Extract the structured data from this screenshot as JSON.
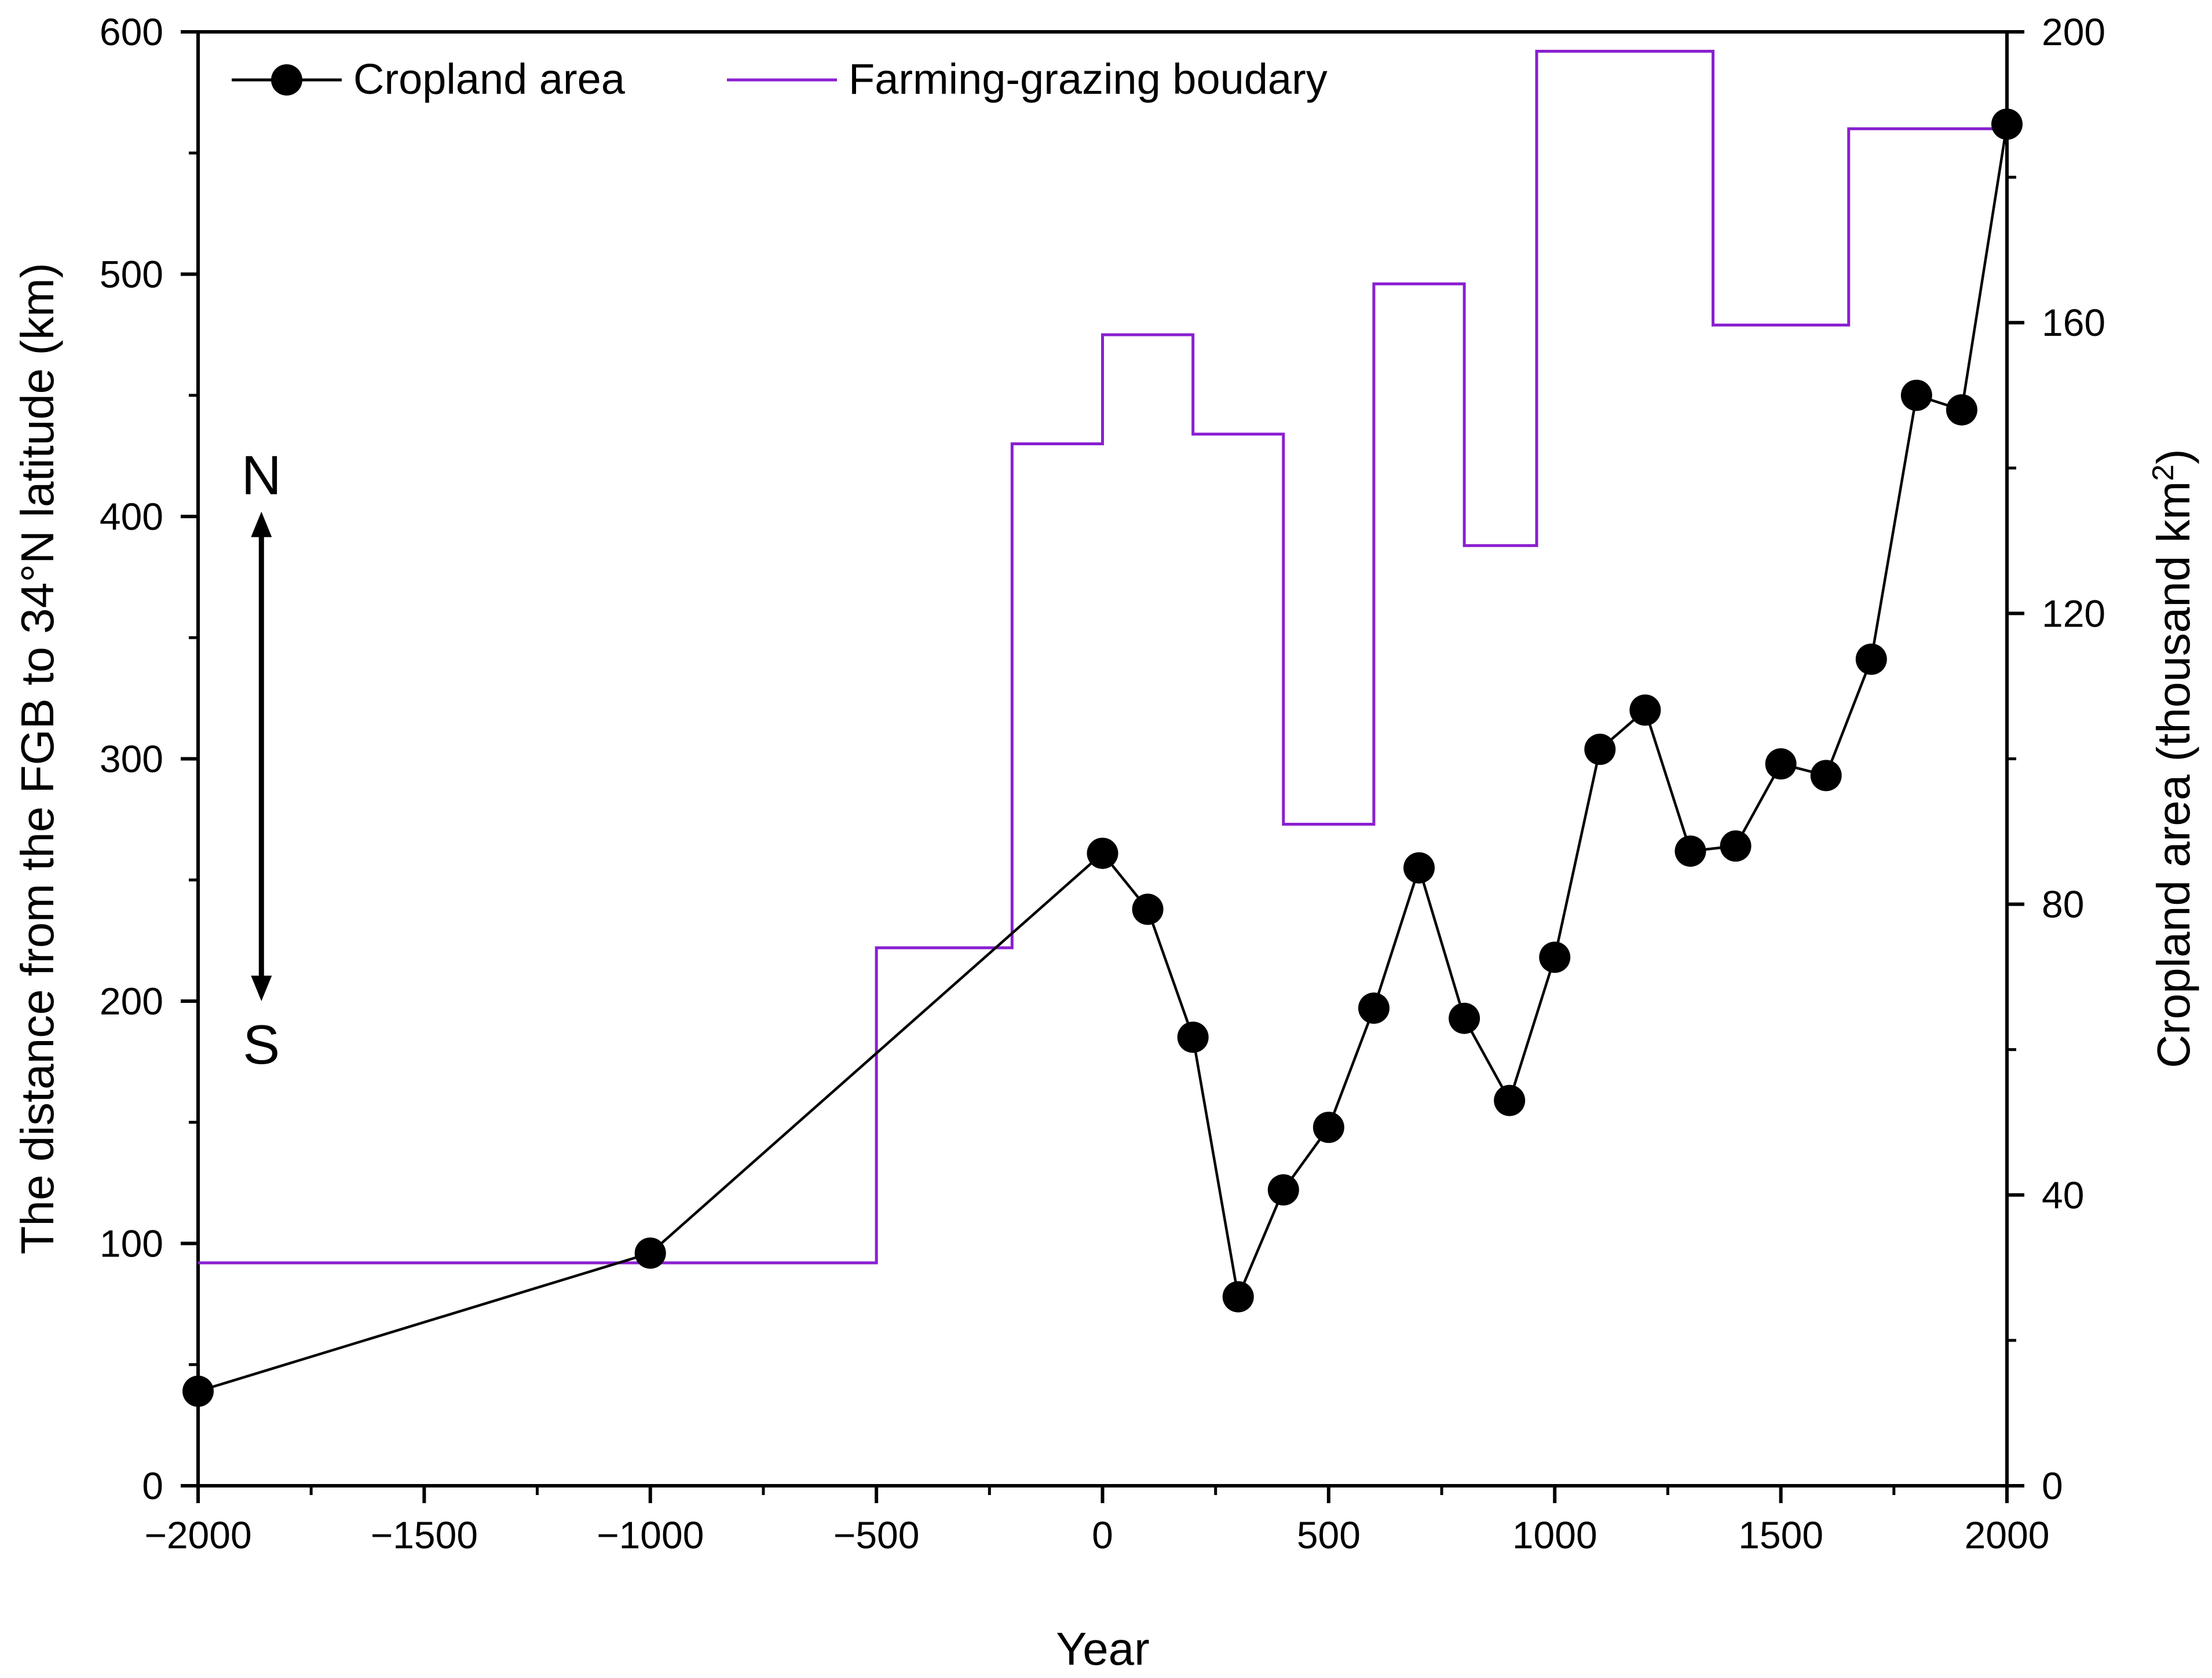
{
  "chart_data": {
    "type": "line",
    "xlabel": "Year",
    "ylabel_left": "The distance from the FGB to 34°N latitude (km)",
    "ylabel_right_prefix": "Cropland area (thousand km",
    "ylabel_right_sup": "2",
    "ylabel_right_suffix": ")",
    "xlim": [
      -2000,
      2000
    ],
    "ylim_left": [
      0,
      600
    ],
    "ylim_right": [
      0,
      200
    ],
    "xticks": [
      -2000,
      -1500,
      -1000,
      -500,
      0,
      500,
      1000,
      1500,
      2000
    ],
    "xtick_labels": [
      "−2000",
      "−1500",
      "−1000",
      "−500",
      "0",
      "500",
      "1000",
      "1500",
      "2000"
    ],
    "yticks_left": [
      0,
      100,
      200,
      300,
      400,
      500,
      600
    ],
    "yticks_left_labels": [
      "0",
      "100",
      "200",
      "300",
      "400",
      "500",
      "600"
    ],
    "yticks_right": [
      0,
      40,
      80,
      120,
      160,
      200
    ],
    "yticks_right_labels": [
      "0",
      "40",
      "80",
      "120",
      "160",
      "200"
    ],
    "legend_position": "top",
    "series": [
      {
        "name": "Cropland area",
        "axis": "right",
        "style": "line-with-circle-markers",
        "color": "#000000",
        "x": [
          -2000,
          -1000,
          0,
          100,
          200,
          300,
          400,
          500,
          600,
          700,
          800,
          900,
          1000,
          1100,
          1200,
          1300,
          1400,
          1500,
          1600,
          1700,
          1800,
          1900,
          2000
        ],
        "y": [
          13,
          32,
          87,
          79.3,
          61.7,
          26,
          40.7,
          49.3,
          65.7,
          85,
          64.3,
          53,
          72.7,
          101.3,
          106.7,
          87.3,
          88,
          99.3,
          97.7,
          113.7,
          150,
          148,
          187.3
        ]
      },
      {
        "name": "Farming-grazing boudary",
        "axis": "left",
        "style": "step",
        "color": "#8a1fd0",
        "steps": [
          {
            "x0": -2000,
            "x1": -500,
            "y": 92
          },
          {
            "x0": -500,
            "x1": -200,
            "y": 222
          },
          {
            "x0": -200,
            "x1": 0,
            "y": 430
          },
          {
            "x0": 0,
            "x1": 200,
            "y": 475
          },
          {
            "x0": 200,
            "x1": 400,
            "y": 434
          },
          {
            "x0": 400,
            "x1": 600,
            "y": 273
          },
          {
            "x0": 600,
            "x1": 800,
            "y": 496
          },
          {
            "x0": 800,
            "x1": 960,
            "y": 388
          },
          {
            "x0": 960,
            "x1": 1350,
            "y": 592
          },
          {
            "x0": 1350,
            "x1": 1650,
            "y": 479
          },
          {
            "x0": 1650,
            "x1": 2000,
            "y": 560
          }
        ]
      }
    ],
    "annotations": {
      "north": "N",
      "south": "S",
      "arrow_x": -1860,
      "arrow_y_top": 402,
      "arrow_y_bottom": 200
    }
  }
}
